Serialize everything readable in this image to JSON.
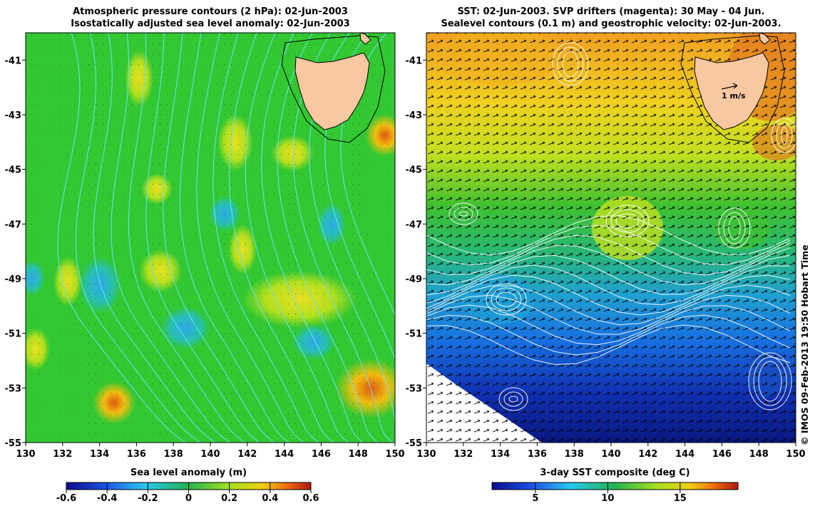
{
  "left_panel": {
    "title_line1": "Atmospheric pressure contours (2 hPa): 02-Jun-2003",
    "title_line2": "Isostatically adjusted sea level anomaly: 02-Jun-2003",
    "colorbar_label": "Sea level anomaly (m)",
    "colorbar_ticks": [
      "-0.6",
      "-0.4",
      "-0.2",
      "0",
      "0.2",
      "0.4",
      "0.6"
    ],
    "colorbar_range": [
      -0.6,
      0.6
    ],
    "x_ticks": [
      "130",
      "132",
      "134",
      "136",
      "138",
      "140",
      "142",
      "144",
      "146",
      "148",
      "150"
    ],
    "y_ticks": [
      "-41",
      "-43",
      "-45",
      "-47",
      "-49",
      "-51",
      "-53",
      "-55"
    ],
    "contour_color": "#66e0ff",
    "background_color": "#33c832"
  },
  "right_panel": {
    "title_line1": "SST: 02-Jun-2003. SVP drifters (magenta): 30 May - 04 Jun.",
    "title_line2": "Sealevel contours (0.1 m) and geostrophic velocity: 02-Jun-2003.",
    "colorbar_label": "3-day SST composite (deg C)",
    "colorbar_ticks": [
      "5",
      "10",
      "15"
    ],
    "colorbar_range": [
      2,
      19
    ],
    "velocity_label": "1 m/s",
    "x_ticks": [
      "130",
      "132",
      "134",
      "136",
      "138",
      "140",
      "142",
      "144",
      "146",
      "148",
      "150"
    ],
    "y_ticks": [
      "-41",
      "-43",
      "-45",
      "-47",
      "-49",
      "-51",
      "-53",
      "-55"
    ]
  },
  "credit": "© IMOS 09-Feb-2013 19:50 Hobart Time",
  "map_extent": {
    "lon": [
      130,
      150
    ],
    "lat": [
      -55,
      -40
    ]
  },
  "land_name": "Tasmania",
  "land_color": "#f8c8a0"
}
